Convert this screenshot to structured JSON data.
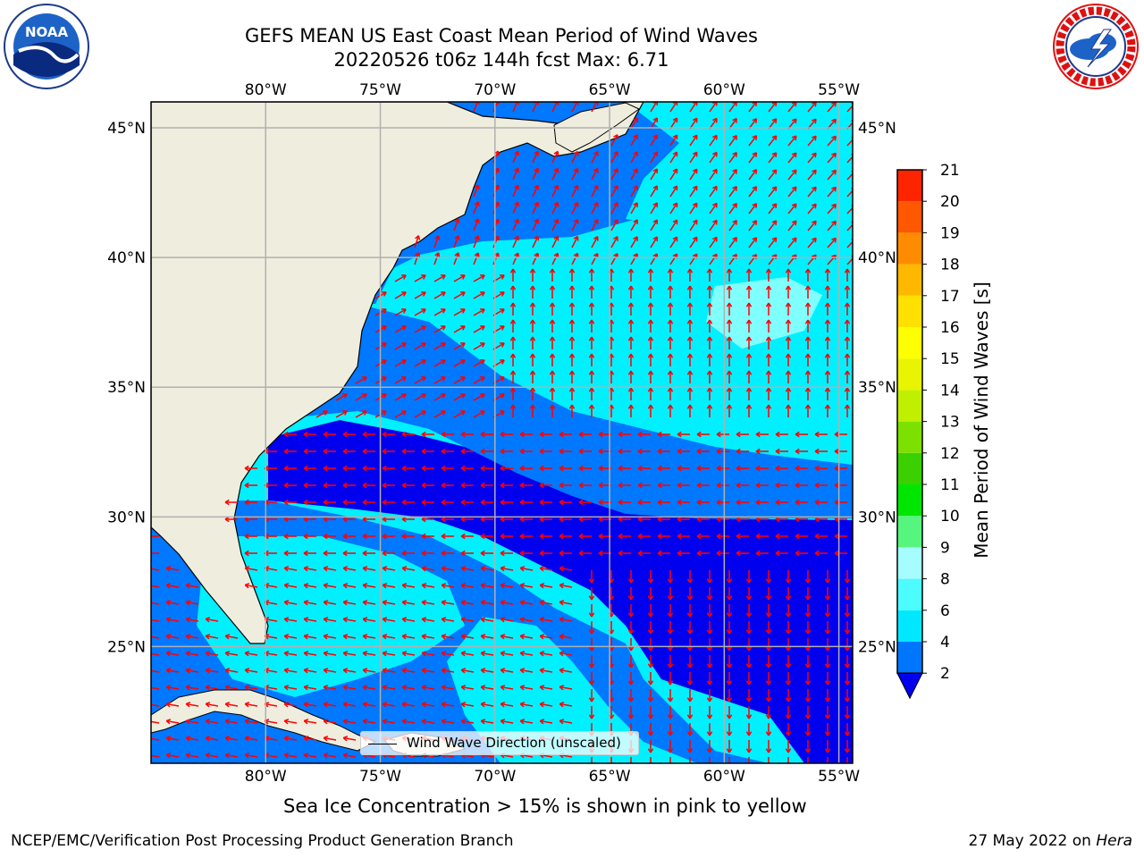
{
  "header": {
    "title_line1": "GEFS MEAN US East Coast Mean Period of Wind Waves",
    "title_line2": "20220526 t06z 144h fcst   Max: 6.71"
  },
  "logos": {
    "left": {
      "text": "NOAA",
      "ring_text": "NATIONAL OCEANIC AND ATMOSPHERIC ADMINISTRATION · U.S. DEPARTMENT OF COMMERCE"
    },
    "right": {
      "ring_text": "NATIONAL WEATHER SERVICE"
    }
  },
  "map": {
    "lon_labels": [
      "80°W",
      "75°W",
      "70°W",
      "65°W",
      "60°W",
      "55°W"
    ],
    "lat_labels": [
      "45°N",
      "40°N",
      "35°N",
      "30°N",
      "25°N"
    ],
    "lon_values": [
      -80,
      -75,
      -70,
      -65,
      -60,
      -55
    ],
    "lat_values": [
      45,
      40,
      35,
      30,
      25
    ],
    "lon_range": [
      -85,
      -54.4
    ],
    "lat_range": [
      20.5,
      46
    ],
    "colors": {
      "land": "#efedde",
      "ocean_low": "#0000ee",
      "ocean_mid": "#0078ff",
      "ocean_high": "#00f0ff",
      "ocean_highest": "#80ffff",
      "grid": "#b0b0b0",
      "arrow": "#ff0000"
    },
    "legend_label": "Wind Wave Direction (unscaled)"
  },
  "colorbar": {
    "label": "Mean Period of Wind Waves [s]",
    "ticks": [
      "2",
      "4",
      "6",
      "8",
      "9",
      "10",
      "11",
      "12",
      "13",
      "14",
      "15",
      "16",
      "17",
      "18",
      "19",
      "20",
      "21"
    ],
    "colors": [
      "#0076ff",
      "#00e8ff",
      "#4cfcff",
      "#a6fdff",
      "#56f57e",
      "#00e600",
      "#3bd000",
      "#7ce000",
      "#c0f000",
      "#e8f400",
      "#ffff00",
      "#ffe000",
      "#ffb800",
      "#ff8c00",
      "#ff5800",
      "#ff2400"
    ],
    "extend_color": "#0000ee"
  },
  "footer": {
    "sea_ice_note": "Sea Ice Concentration > 15% is shown in pink to yellow",
    "left": "NCEP/EMC/Verification Post Processing Product Generation Branch",
    "right_prefix": "27 May 2022 on ",
    "right_host": "Hera"
  }
}
